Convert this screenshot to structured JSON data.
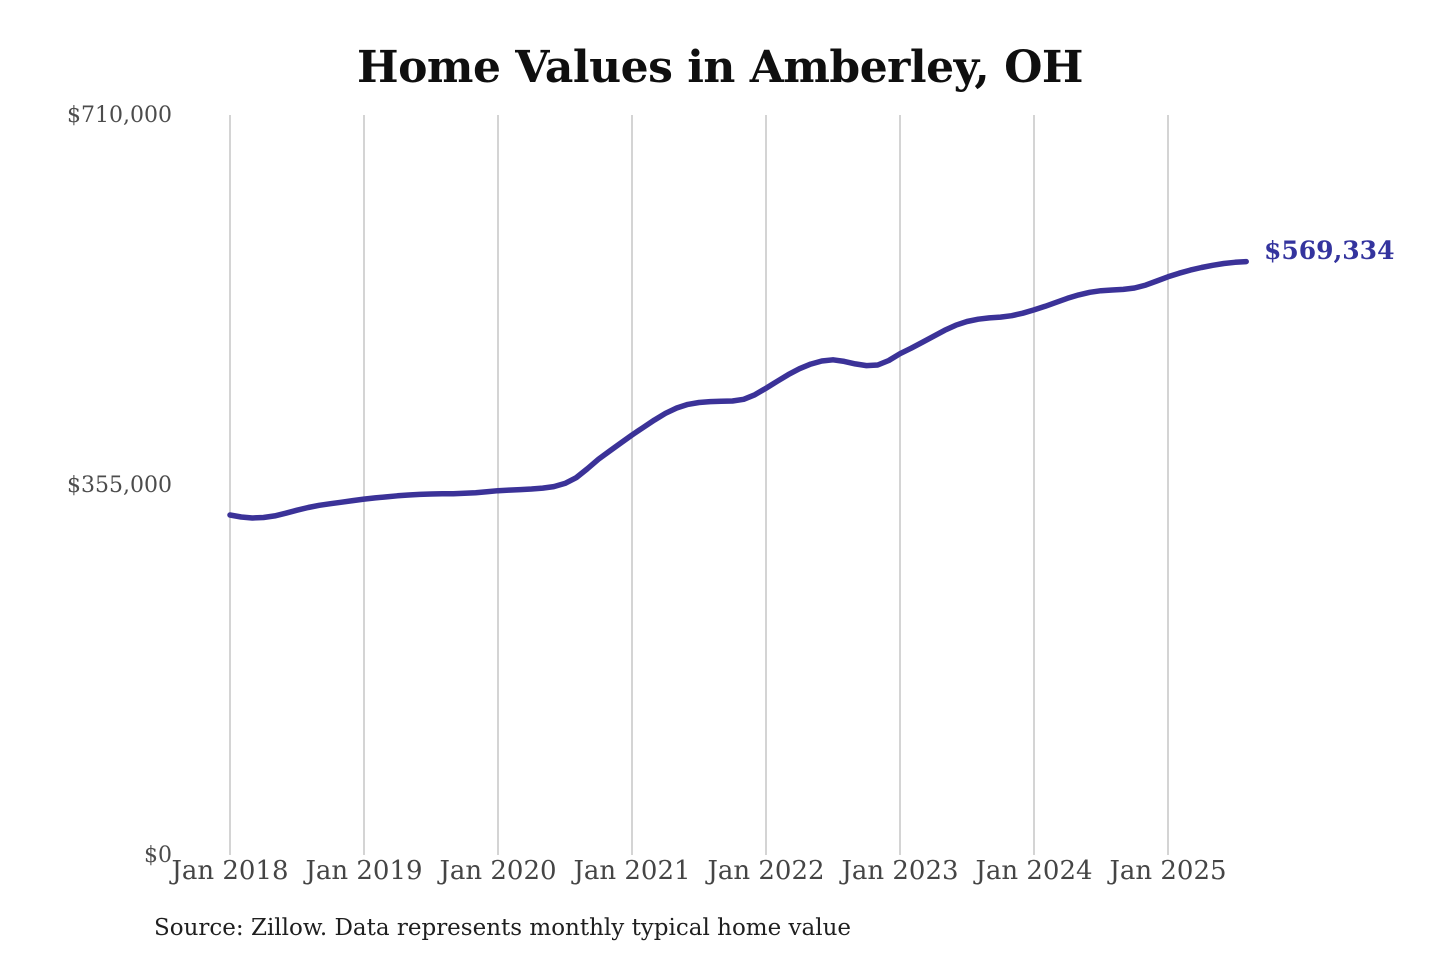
{
  "chart_data": {
    "type": "line",
    "title": "Home Values in Amberley, OH",
    "source_note": "Source: Zillow. Data represents monthly typical home value",
    "final_value": 569334,
    "final_value_label": "$569,334",
    "y_tick_labels": [
      "$0",
      "$355,000",
      "$710,000"
    ],
    "y_ticks": [
      0,
      355000,
      710000
    ],
    "ylim": [
      0,
      710000
    ],
    "x_tick_labels": [
      "Jan 2018",
      "Jan 2019",
      "Jan 2020",
      "Jan 2021",
      "Jan 2022",
      "Jan 2023",
      "Jan 2024",
      "Jan 2025"
    ],
    "x_start_month": "Jan 2018",
    "x_end_month": "Aug 2025",
    "x_interval": "monthly",
    "grid": "vertical-only",
    "legend": "none",
    "colors": {
      "line": "#3b3298",
      "end_label": "#34349e",
      "gridline": "#bdbdbd",
      "axis_label": "#4c4c4c",
      "title": "#0f0f0f",
      "source": "#1f1f1f",
      "background": "#ffffff"
    },
    "series": [
      {
        "name": "Monthly typical home value (USD)",
        "values": [
          326200,
          324300,
          323300,
          323800,
          325400,
          327900,
          330800,
          333400,
          335500,
          337100,
          338500,
          340000,
          341500,
          342600,
          343600,
          344600,
          345400,
          346000,
          346400,
          346600,
          346700,
          347000,
          347600,
          348500,
          349500,
          350100,
          350600,
          351200,
          352000,
          353500,
          356500,
          362000,
          370500,
          379800,
          387600,
          395300,
          403000,
          410200,
          417300,
          423800,
          428900,
          432300,
          434200,
          435000,
          435300,
          435600,
          437200,
          441500,
          447900,
          454500,
          460900,
          466600,
          471000,
          474000,
          475100,
          473600,
          471200,
          469600,
          470100,
          474500,
          481000,
          486300,
          491900,
          497700,
          503400,
          508300,
          511900,
          514100,
          515300,
          516100,
          517400,
          519800,
          523000,
          526500,
          530300,
          534100,
          537400,
          539900,
          541400,
          542100,
          542700,
          544000,
          546800,
          550700,
          554800,
          558200,
          561200,
          563700,
          565800,
          567500,
          568700,
          569334
        ]
      }
    ]
  }
}
